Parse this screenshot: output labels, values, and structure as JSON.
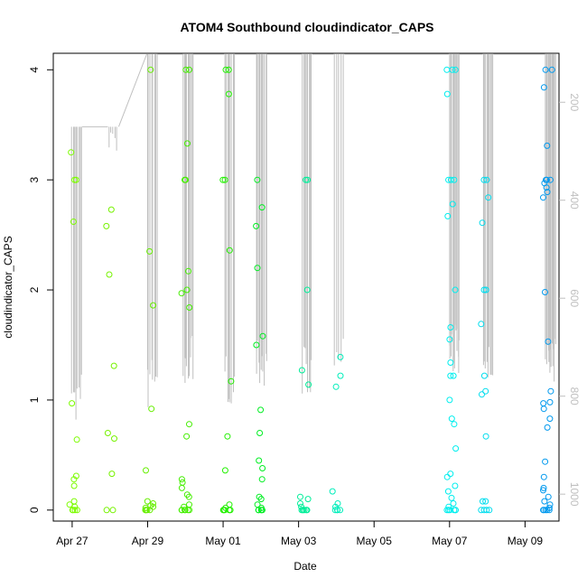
{
  "chart_data": {
    "type": "scatter",
    "title": "ATOM4 Southbound cloudindicator_CAPS",
    "xlabel": "Date",
    "ylabel": "cloudindicator_CAPS",
    "x_ticks": [
      {
        "label": "Apr 27",
        "day": 0
      },
      {
        "label": "Apr 29",
        "day": 2
      },
      {
        "label": "May 01",
        "day": 4
      },
      {
        "label": "May 03",
        "day": 6
      },
      {
        "label": "May 05",
        "day": 8
      },
      {
        "label": "May 07",
        "day": 10
      },
      {
        "label": "May 09",
        "day": 12
      }
    ],
    "xlim_days": [
      -0.5,
      12.9
    ],
    "y_ticks": [
      0,
      1,
      2,
      3,
      4
    ],
    "ylim": [
      -0.1,
      4.15
    ],
    "secondary_axis": {
      "description": "pressure / depth profile (grey track)",
      "ticks": [
        200,
        400,
        600,
        800,
        1000
      ],
      "range": [
        100,
        1055
      ],
      "color": "#bfbfbf"
    },
    "groups": [
      {
        "day": 0.0,
        "color": "#7CFC00",
        "values": [
          3.25,
          3.0,
          3.0,
          2.62,
          0.97,
          0.64,
          0.31,
          0.28,
          0.22,
          0.08,
          0.05,
          0.03,
          0.0,
          0.0,
          0.0,
          0.0
        ],
        "profile": {
          "top": 250,
          "bottom": 850
        }
      },
      {
        "day": 0.97,
        "color": "#76F200",
        "values": [
          2.73,
          2.58,
          2.14,
          1.31,
          0.7,
          0.65,
          0.33,
          0.0,
          0.0
        ],
        "profile": {
          "top": 250,
          "bottom": 330
        }
      },
      {
        "day": 2.0,
        "color": "#66EE00",
        "values": [
          4.0,
          2.35,
          1.86,
          0.92,
          0.36,
          0.08,
          0.06,
          0.04,
          0.03,
          0.02,
          0.0,
          0.0,
          0.0,
          0.0,
          0.0
        ],
        "profile": {
          "top": 100,
          "bottom": 830
        }
      },
      {
        "day": 2.95,
        "color": "#44EE00",
        "values": [
          4.0,
          4.0,
          3.33,
          3.0,
          3.0,
          2.17,
          2.0,
          1.97,
          1.84,
          0.78,
          0.67,
          0.28,
          0.25,
          0.2,
          0.14,
          0.12,
          0.05,
          0.03,
          0.0,
          0.0,
          0.0,
          0.0,
          0.0,
          0.0
        ],
        "profile": {
          "top": 100,
          "bottom": 780
        }
      },
      {
        "day": 4.05,
        "color": "#22F000",
        "values": [
          4.0,
          4.0,
          3.78,
          3.0,
          3.0,
          2.36,
          1.17,
          0.67,
          0.36,
          0.05,
          0.02,
          0.0,
          0.0,
          0.0,
          0.0,
          0.0
        ],
        "profile": {
          "top": 100,
          "bottom": 820
        }
      },
      {
        "day": 4.9,
        "color": "#00EE22",
        "values": [
          3.0,
          2.75,
          2.58,
          2.2,
          1.58,
          1.5,
          0.91,
          0.7,
          0.45,
          0.38,
          0.28,
          0.12,
          0.1,
          0.05,
          0.02,
          0.0,
          0.0,
          0.0,
          0.0,
          0.0
        ],
        "profile": {
          "top": 100,
          "bottom": 795
        }
      },
      {
        "day": 6.1,
        "color": "#00EE99",
        "values": [
          3.0,
          3.0,
          2.0,
          1.27,
          1.14,
          0.12,
          0.1,
          0.06,
          0.03,
          0.0,
          0.0,
          0.0,
          0.0,
          0.0,
          0.0
        ],
        "profile": {
          "top": 100,
          "bottom": 805
        }
      },
      {
        "day": 6.95,
        "color": "#00EEBB",
        "values": [
          1.39,
          1.22,
          1.12,
          0.17,
          0.06,
          0.03,
          0.0,
          0.0,
          0.0,
          0.0
        ],
        "profile": {
          "top": 100,
          "bottom": 760
        }
      },
      {
        "day": 10.0,
        "color": "#00EEEE",
        "values": [
          4.0,
          4.0,
          4.0,
          3.78,
          3.0,
          3.0,
          3.0,
          2.78,
          2.67,
          2.0,
          1.66,
          1.55,
          1.34,
          1.22,
          1.22,
          1.0,
          0.83,
          0.78,
          0.56,
          0.33,
          0.3,
          0.22,
          0.17,
          0.11,
          0.06,
          0.03,
          0.0,
          0.0,
          0.0,
          0.0,
          0.0,
          0.0
        ],
        "profile": {
          "top": 100,
          "bottom": 760
        }
      },
      {
        "day": 10.9,
        "color": "#00DDEE",
        "values": [
          3.0,
          3.0,
          2.84,
          2.61,
          2.0,
          2.0,
          1.69,
          1.22,
          1.08,
          1.05,
          0.67,
          0.08,
          0.08,
          0.0,
          0.0,
          0.0,
          0.0
        ],
        "profile": {
          "top": 100,
          "bottom": 770
        }
      },
      {
        "day": 12.55,
        "color": "#0099EE",
        "values": [
          4.0,
          4.0,
          3.84,
          3.31,
          3.0,
          3.0,
          3.0,
          2.97,
          2.93,
          2.89,
          2.84,
          1.98,
          1.53,
          1.08,
          0.98,
          0.97,
          0.92,
          0.83,
          0.75,
          0.44,
          0.3,
          0.2,
          0.18,
          0.12,
          0.08,
          0.05,
          0.02,
          0.0,
          0.0,
          0.0,
          0.0,
          0.0
        ],
        "profile": {
          "top": 100,
          "bottom": 790
        }
      }
    ]
  }
}
